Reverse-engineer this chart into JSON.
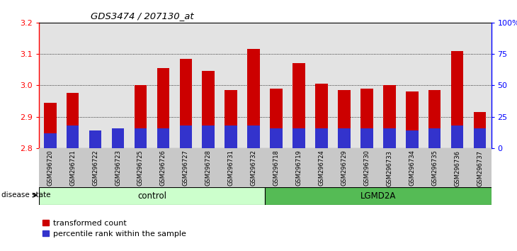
{
  "title": "GDS3474 / 207130_at",
  "samples": [
    "GSM296720",
    "GSM296721",
    "GSM296722",
    "GSM296723",
    "GSM296725",
    "GSM296726",
    "GSM296727",
    "GSM296728",
    "GSM296731",
    "GSM296732",
    "GSM296718",
    "GSM296719",
    "GSM296724",
    "GSM296729",
    "GSM296730",
    "GSM296733",
    "GSM296734",
    "GSM296735",
    "GSM296736",
    "GSM296737"
  ],
  "transformed_counts": [
    2.945,
    2.975,
    2.845,
    2.855,
    3.0,
    3.055,
    3.085,
    3.045,
    2.985,
    3.115,
    2.99,
    3.07,
    3.005,
    2.985,
    2.99,
    3.0,
    2.98,
    2.985,
    3.11,
    2.915
  ],
  "percentile_ranks": [
    12,
    18,
    14,
    16,
    16,
    16,
    18,
    18,
    18,
    18,
    16,
    16,
    16,
    16,
    16,
    16,
    14,
    16,
    18,
    16
  ],
  "ymin": 2.8,
  "ymax": 3.2,
  "yticks": [
    2.8,
    2.9,
    3.0,
    3.1,
    3.2
  ],
  "right_yticks": [
    0,
    25,
    50,
    75,
    100
  ],
  "right_yticklabels": [
    "0",
    "25",
    "50",
    "75",
    "100%"
  ],
  "bar_color_red": "#cc0000",
  "bar_color_blue": "#3333cc",
  "control_label": "control",
  "lgmd2a_label": "LGMD2A",
  "disease_state_label": "disease state",
  "legend_red_label": "transformed count",
  "legend_blue_label": "percentile rank within the sample",
  "control_bg": "#ccffcc",
  "lgmd2a_bg": "#55bb55",
  "bar_width": 0.55
}
